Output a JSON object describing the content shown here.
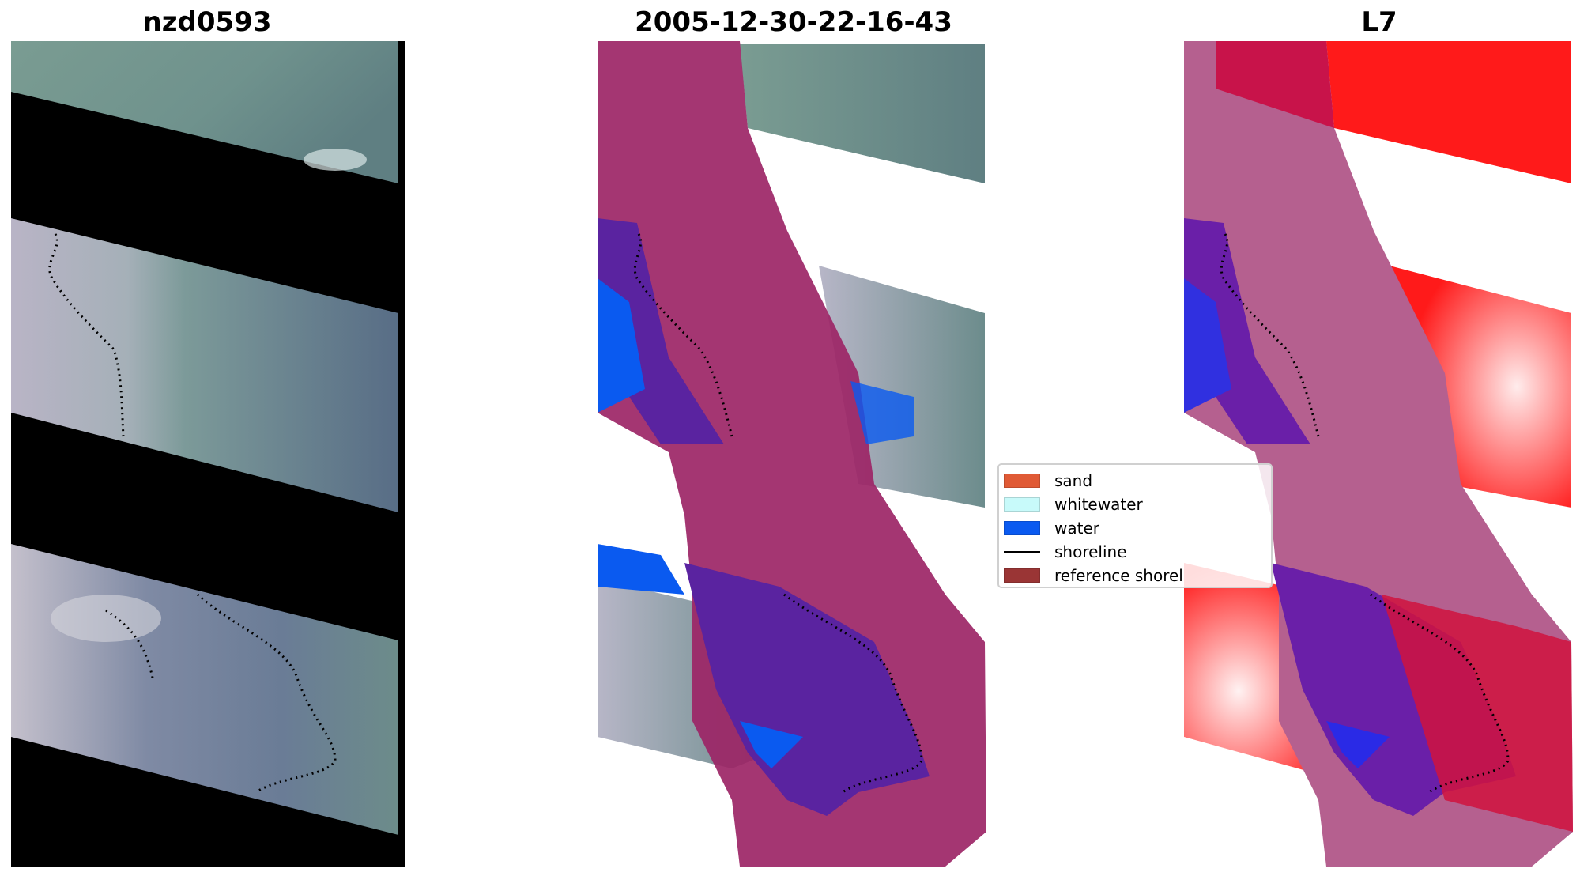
{
  "panels": {
    "left_title": "nzd0593",
    "middle_title": "2005-12-30-22-16-43",
    "right_title": "L7"
  },
  "legend": {
    "items": [
      {
        "label": "sand",
        "kind": "patch",
        "color": "#e05a35"
      },
      {
        "label": "whitewater",
        "kind": "patch",
        "color": "#c8fafa"
      },
      {
        "label": "water",
        "kind": "patch",
        "color": "#0a5af0"
      },
      {
        "label": "shoreline",
        "kind": "line",
        "color": "#000000"
      },
      {
        "label": "reference shorel",
        "kind": "patch",
        "color": "#9a3535"
      }
    ]
  },
  "colors": {
    "nodata": "#000000",
    "overlay_magenta": "#9c2566",
    "overlay_purple": "#5a23a0",
    "ratio_red": "#ff1a1a",
    "ratio_blue": "#2a2ae6",
    "ratio_pink": "#b5608f"
  }
}
